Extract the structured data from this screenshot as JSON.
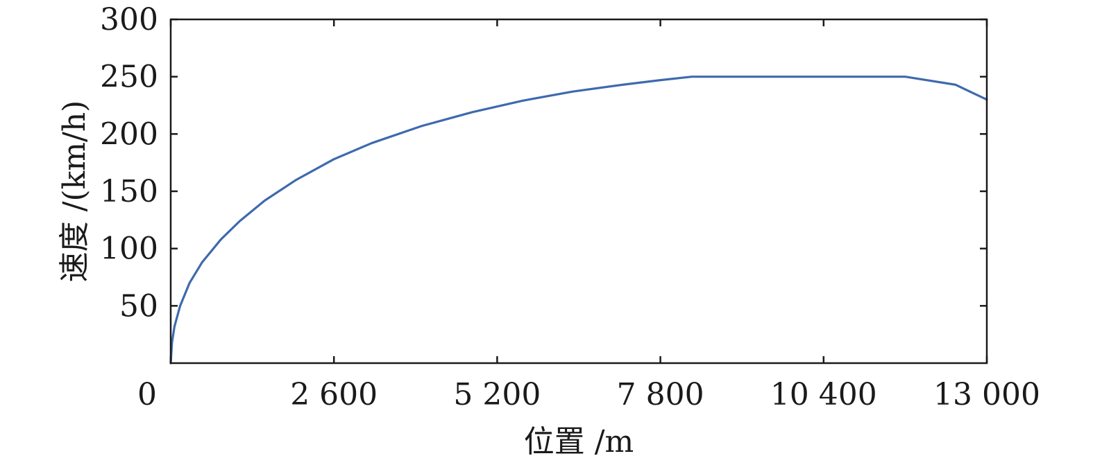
{
  "chart_data": {
    "type": "line",
    "title": "",
    "xlabel": "位置 /m",
    "ylabel": "速度 /(km/h)",
    "xlim": [
      0,
      13000
    ],
    "ylim": [
      0,
      300
    ],
    "x_ticks": [
      0,
      2600,
      5200,
      7800,
      10400,
      13000
    ],
    "x_tick_labels": [
      "0",
      "2 600",
      "5 200",
      "7 800",
      "10 400",
      "13 000"
    ],
    "y_ticks": [
      50,
      100,
      150,
      200,
      250,
      300
    ],
    "y_tick_labels": [
      "50",
      "100",
      "150",
      "200",
      "250",
      "300"
    ],
    "grid": false,
    "legend": "none",
    "series": [
      {
        "color": "#3d6aad",
        "x": [
          0,
          20,
          60,
          150,
          300,
          500,
          800,
          1100,
          1500,
          2000,
          2600,
          3200,
          4000,
          4800,
          5600,
          6400,
          7200,
          7800,
          8300,
          9000,
          10000,
          11000,
          11700,
          12500,
          13000
        ],
        "y": [
          0,
          18,
          32,
          50,
          70,
          88,
          108,
          124,
          142,
          160,
          178,
          192,
          207,
          219,
          229,
          237,
          243,
          247,
          250,
          250,
          250,
          250,
          250,
          243,
          230
        ]
      }
    ]
  }
}
